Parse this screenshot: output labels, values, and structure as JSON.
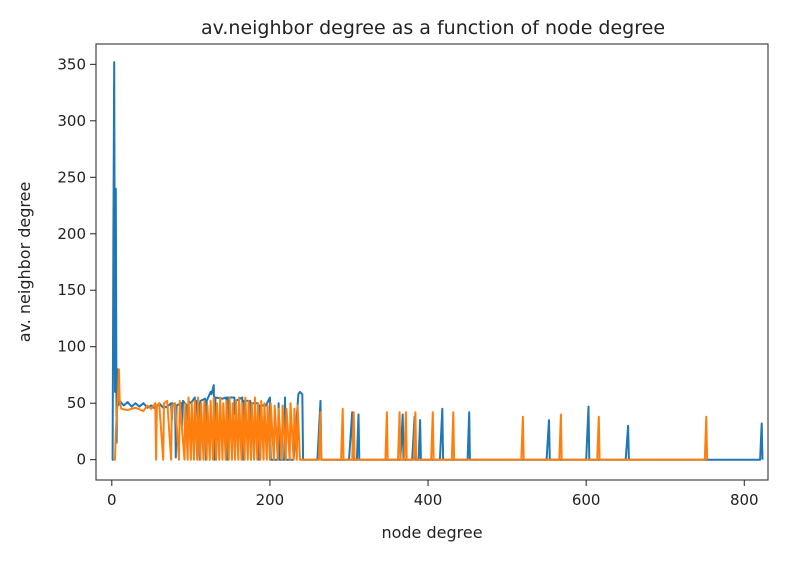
{
  "chart_data": {
    "type": "line",
    "title": "av.neighbor degree as a function of node degree",
    "xlabel": "node degree",
    "ylabel": "av. neighbor degree",
    "xlim": [
      -20,
      830
    ],
    "ylim": [
      -18,
      368
    ],
    "xticks": [
      0,
      200,
      400,
      600,
      800
    ],
    "yticks": [
      0,
      50,
      100,
      150,
      200,
      250,
      300,
      350
    ],
    "grid": false,
    "legend": "none",
    "series": [
      {
        "color": "#1f77b4",
        "points": [
          [
            0,
            0
          ],
          [
            1,
            0
          ],
          [
            2,
            200
          ],
          [
            3,
            352
          ],
          [
            4,
            60
          ],
          [
            5,
            240
          ],
          [
            6,
            15
          ],
          [
            7,
            80
          ],
          [
            8,
            48
          ],
          [
            10,
            52
          ],
          [
            15,
            48
          ],
          [
            20,
            51
          ],
          [
            25,
            47
          ],
          [
            30,
            50
          ],
          [
            35,
            47
          ],
          [
            40,
            50
          ],
          [
            45,
            46
          ],
          [
            50,
            48
          ],
          [
            55,
            45
          ],
          [
            60,
            50
          ],
          [
            65,
            46
          ],
          [
            70,
            47
          ],
          [
            75,
            50
          ],
          [
            76,
            35
          ],
          [
            77,
            50
          ],
          [
            80,
            48
          ],
          [
            81,
            2
          ],
          [
            82,
            48
          ],
          [
            88,
            50
          ],
          [
            89,
            30
          ],
          [
            90,
            52
          ],
          [
            95,
            48
          ],
          [
            96,
            35
          ],
          [
            97,
            52
          ],
          [
            100,
            50
          ],
          [
            105,
            55
          ],
          [
            106,
            35
          ],
          [
            107,
            52
          ],
          [
            110,
            50
          ],
          [
            111,
            0
          ],
          [
            112,
            52
          ],
          [
            118,
            54
          ],
          [
            119,
            0
          ],
          [
            120,
            52
          ],
          [
            125,
            60
          ],
          [
            126,
            58
          ],
          [
            129,
            66
          ],
          [
            130,
            0
          ],
          [
            131,
            55
          ],
          [
            140,
            54
          ],
          [
            145,
            55
          ],
          [
            146,
            0
          ],
          [
            147,
            55
          ],
          [
            155,
            55
          ],
          [
            156,
            40
          ],
          [
            157,
            52
          ],
          [
            165,
            55
          ],
          [
            166,
            0
          ],
          [
            167,
            52
          ],
          [
            175,
            52
          ],
          [
            176,
            0
          ],
          [
            177,
            50
          ],
          [
            185,
            50
          ],
          [
            186,
            0
          ],
          [
            187,
            48
          ],
          [
            195,
            48
          ],
          [
            200,
            55
          ],
          [
            201,
            0
          ],
          [
            202,
            0
          ],
          [
            210,
            0
          ],
          [
            211,
            50
          ],
          [
            212,
            0
          ],
          [
            218,
            0
          ],
          [
            219,
            55
          ],
          [
            220,
            0
          ],
          [
            230,
            0
          ],
          [
            236,
            58
          ],
          [
            238,
            60
          ],
          [
            241,
            58
          ],
          [
            242,
            0
          ],
          [
            260,
            0
          ],
          [
            264,
            52
          ],
          [
            265,
            0
          ],
          [
            300,
            0
          ],
          [
            304,
            42
          ],
          [
            305,
            0
          ],
          [
            310,
            0
          ],
          [
            312,
            40
          ],
          [
            313,
            0
          ],
          [
            365,
            0
          ],
          [
            368,
            40
          ],
          [
            369,
            0
          ],
          [
            380,
            0
          ],
          [
            383,
            38
          ],
          [
            384,
            0
          ],
          [
            388,
            0
          ],
          [
            390,
            35
          ],
          [
            391,
            0
          ],
          [
            415,
            0
          ],
          [
            418,
            45
          ],
          [
            419,
            0
          ],
          [
            450,
            0
          ],
          [
            452,
            42
          ],
          [
            453,
            0
          ],
          [
            550,
            0
          ],
          [
            553,
            35
          ],
          [
            554,
            0
          ],
          [
            600,
            0
          ],
          [
            603,
            47
          ],
          [
            604,
            0
          ],
          [
            650,
            0
          ],
          [
            653,
            30
          ],
          [
            654,
            0
          ],
          [
            820,
            0
          ],
          [
            822,
            32
          ],
          [
            823,
            0
          ]
        ]
      },
      {
        "color": "#ff7f0e",
        "points": [
          [
            2,
            0
          ],
          [
            4,
            0
          ],
          [
            5,
            25
          ],
          [
            7,
            48
          ],
          [
            8,
            60
          ],
          [
            9,
            80
          ],
          [
            10,
            52
          ],
          [
            12,
            45
          ],
          [
            20,
            44
          ],
          [
            30,
            46
          ],
          [
            40,
            43
          ],
          [
            45,
            48
          ],
          [
            50,
            45
          ],
          [
            55,
            50
          ],
          [
            56,
            0
          ],
          [
            57,
            48
          ],
          [
            60,
            50
          ],
          [
            65,
            0
          ],
          [
            66,
            50
          ],
          [
            70,
            52
          ],
          [
            75,
            0
          ],
          [
            76,
            48
          ],
          [
            80,
            50
          ],
          [
            85,
            0
          ],
          [
            86,
            52
          ],
          [
            92,
            0
          ],
          [
            93,
            50
          ],
          [
            96,
            0
          ],
          [
            97,
            55
          ],
          [
            100,
            0
          ],
          [
            101,
            50
          ],
          [
            104,
            0
          ],
          [
            105,
            52
          ],
          [
            108,
            0
          ],
          [
            109,
            55
          ],
          [
            112,
            0
          ],
          [
            113,
            50
          ],
          [
            116,
            0
          ],
          [
            117,
            52
          ],
          [
            120,
            0
          ],
          [
            121,
            48
          ],
          [
            124,
            0
          ],
          [
            125,
            52
          ],
          [
            128,
            0
          ],
          [
            129,
            55
          ],
          [
            132,
            0
          ],
          [
            133,
            50
          ],
          [
            136,
            0
          ],
          [
            137,
            55
          ],
          [
            140,
            0
          ],
          [
            141,
            50
          ],
          [
            144,
            0
          ],
          [
            145,
            52
          ],
          [
            148,
            0
          ],
          [
            149,
            55
          ],
          [
            152,
            0
          ],
          [
            153,
            50
          ],
          [
            156,
            0
          ],
          [
            157,
            52
          ],
          [
            160,
            0
          ],
          [
            161,
            55
          ],
          [
            164,
            0
          ],
          [
            165,
            50
          ],
          [
            168,
            0
          ],
          [
            169,
            55
          ],
          [
            172,
            0
          ],
          [
            173,
            52
          ],
          [
            176,
            0
          ],
          [
            177,
            50
          ],
          [
            180,
            0
          ],
          [
            181,
            55
          ],
          [
            184,
            0
          ],
          [
            185,
            50
          ],
          [
            188,
            0
          ],
          [
            189,
            52
          ],
          [
            192,
            0
          ],
          [
            193,
            50
          ],
          [
            196,
            0
          ],
          [
            197,
            48
          ],
          [
            200,
            0
          ],
          [
            201,
            50
          ],
          [
            205,
            0
          ],
          [
            206,
            48
          ],
          [
            210,
            0
          ],
          [
            211,
            45
          ],
          [
            215,
            0
          ],
          [
            216,
            48
          ],
          [
            220,
            0
          ],
          [
            221,
            45
          ],
          [
            225,
            0
          ],
          [
            226,
            50
          ],
          [
            230,
            0
          ],
          [
            231,
            45
          ],
          [
            234,
            0
          ],
          [
            235,
            48
          ],
          [
            238,
            0
          ],
          [
            262,
            0
          ],
          [
            264,
            42
          ],
          [
            265,
            0
          ],
          [
            290,
            0
          ],
          [
            292,
            45
          ],
          [
            293,
            0
          ],
          [
            304,
            0
          ],
          [
            306,
            42
          ],
          [
            307,
            0
          ],
          [
            346,
            0
          ],
          [
            348,
            42
          ],
          [
            349,
            0
          ],
          [
            362,
            0
          ],
          [
            364,
            42
          ],
          [
            365,
            0
          ],
          [
            370,
            0
          ],
          [
            372,
            42
          ],
          [
            373,
            0
          ],
          [
            382,
            0
          ],
          [
            384,
            42
          ],
          [
            385,
            0
          ],
          [
            404,
            0
          ],
          [
            406,
            42
          ],
          [
            407,
            0
          ],
          [
            430,
            0
          ],
          [
            432,
            42
          ],
          [
            433,
            0
          ],
          [
            518,
            0
          ],
          [
            520,
            38
          ],
          [
            521,
            0
          ],
          [
            566,
            0
          ],
          [
            568,
            40
          ],
          [
            569,
            0
          ],
          [
            614,
            0
          ],
          [
            616,
            38
          ],
          [
            617,
            0
          ],
          [
            750,
            0
          ],
          [
            752,
            38
          ],
          [
            753,
            0
          ]
        ]
      }
    ]
  }
}
